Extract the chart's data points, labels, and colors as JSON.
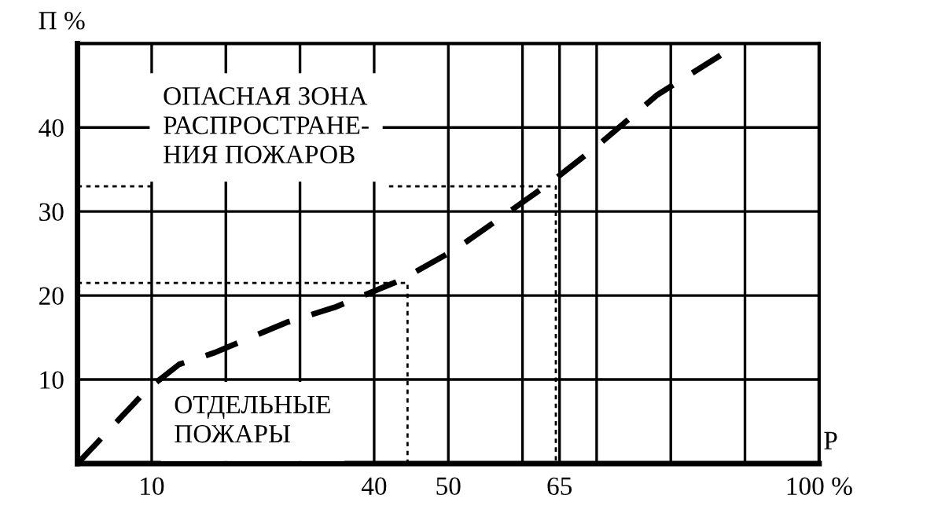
{
  "chart_data": {
    "type": "line",
    "xlabel": "P",
    "ylabel": "П %",
    "xlim": [
      0,
      100
    ],
    "ylim": [
      0,
      50
    ],
    "xticks": [
      10,
      {
        "value": 20,
        "label": null
      },
      {
        "value": 30,
        "label": null
      },
      40,
      50,
      {
        "value": 60,
        "label": null
      },
      65,
      {
        "value": 70,
        "label": null
      },
      {
        "value": 80,
        "label": null
      },
      {
        "value": 90,
        "label": null
      },
      {
        "value": 100,
        "label": "100 %"
      }
    ],
    "yticks": [
      10,
      20,
      30,
      40
    ],
    "grid": true,
    "series": [
      {
        "color": "#000000",
        "line_style": "dashed",
        "x": [
          0,
          9.5,
          13.7,
          18.5,
          28.2,
          34.7,
          43.5,
          50.8,
          58.9,
          64,
          70.2,
          78.2,
          86.7
        ],
        "values": [
          0,
          8.9,
          11.8,
          13.2,
          16.8,
          18.6,
          21.8,
          25.4,
          30.4,
          33.6,
          37.9,
          43.9,
          48.6
        ]
      },
      {
        "color": "#000000",
        "line_style": "dotted",
        "x": [
          0,
          44.5,
          44.5
        ],
        "values": [
          21.5,
          21.5,
          0
        ]
      },
      {
        "color": "#000000",
        "line_style": "dotted",
        "x": [
          0,
          10
        ],
        "values": [
          33,
          33
        ]
      },
      {
        "color": "#000000",
        "line_style": "dotted",
        "x": [
          42,
          64.5,
          64.5
        ],
        "values": [
          33,
          33,
          0
        ]
      }
    ],
    "annotations": [
      "ОПАСНАЯ ЗОНА\nРАСПРОСТРАНЕ-\nНИЯ ПОЖАРОВ",
      "ОТДЕЛЬНЫЕ\nПОЖАРЫ"
    ]
  }
}
